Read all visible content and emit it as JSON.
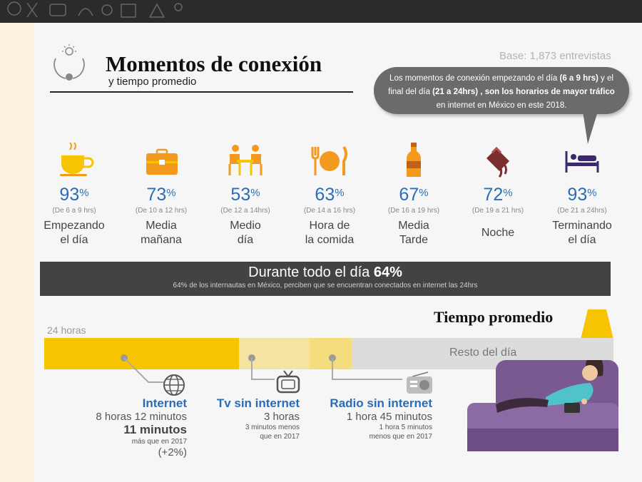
{
  "header": {
    "title": "Momentos de conexión",
    "subtitle": "y tiempo promedio",
    "base": "Base: 1,873 entrevistas"
  },
  "callout": {
    "part1": "Los momentos de conexión empezando el día ",
    "part2": "(6 a 9 hrs)",
    "part3": " y el final del día ",
    "part4": "(21 a 24hrs)",
    "part5": " , son los horarios de mayor tráfico",
    "part6": " en internet en México en este 2018."
  },
  "moments": [
    {
      "pct": "93",
      "hours": "(De 6 a 9 hrs)",
      "label1": "Empezando",
      "label2": "el día",
      "icon": "coffee-cup-icon"
    },
    {
      "pct": "73",
      "hours": "(De 10 a 12 hrs)",
      "label1": "Media",
      "label2": "mañana",
      "icon": "briefcase-icon"
    },
    {
      "pct": "53",
      "hours": "(De 12 a 14hrs)",
      "label1": "Medio",
      "label2": "día",
      "icon": "meeting-people-icon"
    },
    {
      "pct": "63",
      "hours": "(De 14 a 16 hrs)",
      "label1": "Hora de",
      "label2": "la comida",
      "icon": "plate-cutlery-icon"
    },
    {
      "pct": "67",
      "hours": "(De 16 a 19 hrs)",
      "label1": "Media",
      "label2": "Tarde",
      "icon": "bottle-icon"
    },
    {
      "pct": "72",
      "hours": "(De 19 a 21 hrs)",
      "label1": "Noche",
      "label2": "",
      "icon": "dessert-icon"
    },
    {
      "pct": "93",
      "hours": "(De 21 a 24hrs)",
      "label1": "Terminando",
      "label2": "el día",
      "icon": "bed-icon"
    }
  ],
  "percent_sign": "%",
  "allday": {
    "text": "Durante todo el día ",
    "value": "64%",
    "note": "64% de los internautas en México, perciben que se encuentran conectados en internet las 24hrs"
  },
  "tiempo": {
    "title": "Tiempo promedio",
    "hours_label": "24 horas",
    "rest_label": "Resto del día",
    "shares": {
      "internet_hours": 8.2,
      "tv_hours": 3,
      "radio_hours": 1.75,
      "total_hours": 24
    }
  },
  "internet": {
    "name": "Internet",
    "value": "8 horas 12 minutos",
    "delta": "11 minutos",
    "delta_note": "más que en 2017",
    "change": "(+2%)"
  },
  "tv": {
    "name": "Tv sin internet",
    "value": "3 horas",
    "note1": "3 minutos menos",
    "note2": "que en 2017"
  },
  "radio": {
    "name": "Radio sin internet",
    "value": "1 hora 45 minutos",
    "note1": "1 hora 5 minutos",
    "note2": "menos que en 2017"
  },
  "colors": {
    "blue": "#2a6db6",
    "orange": "#f39a1e",
    "internet_bar": "#f6c400",
    "tv_bar": "#f4e3a1",
    "radio_bar": "#f5dc7c",
    "rest_bar": "#dcdcdc",
    "dark": "#434343"
  }
}
